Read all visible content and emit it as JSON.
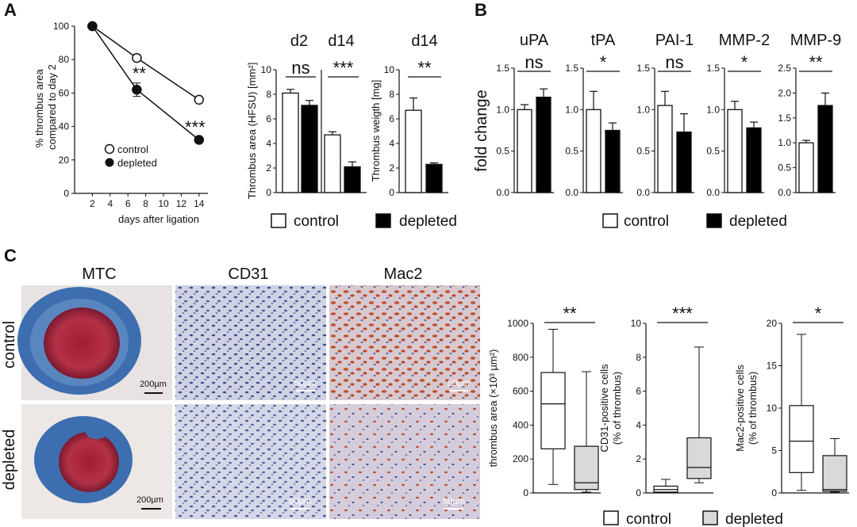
{
  "panel_labels": [
    "A",
    "B",
    "C"
  ],
  "legend": {
    "control": "control",
    "depleted": "depleted"
  },
  "colors": {
    "control": "#ffffff",
    "depleted": "#000000",
    "box_depleted": "#d9d9d9",
    "mtc_blue": "#3d6fb0",
    "mtc_red": "#b0283a",
    "ihc_bg": "#c9cde0",
    "mac2_stain": "#c0502b"
  },
  "chart_data": [
    {
      "id": "A_line",
      "type": "line",
      "xlabel": "days after ligation",
      "ylabel": "% thrombus area compared to day 2",
      "xlim": [
        0,
        15
      ],
      "ylim": [
        0,
        100
      ],
      "x_ticks": [
        "2",
        "4",
        "6",
        "8",
        "10",
        "12",
        "14"
      ],
      "y_ticks": [
        "0",
        "20",
        "40",
        "60",
        "80",
        "100"
      ],
      "series": [
        {
          "name": "control",
          "x": [
            2,
            7,
            14
          ],
          "y": [
            100,
            81,
            56
          ],
          "err": [
            0,
            0,
            0
          ]
        },
        {
          "name": "depleted",
          "x": [
            2,
            7,
            14
          ],
          "y": [
            100,
            62,
            32
          ],
          "err": [
            0,
            4,
            0
          ]
        }
      ],
      "annotations": [
        {
          "text": "**",
          "x": 7
        },
        {
          "text": "***",
          "x": 14
        }
      ]
    },
    {
      "id": "A_area",
      "type": "bar",
      "ylabel": "Thrombus area (HFSU) [mm²]",
      "ylim": [
        0,
        10
      ],
      "y_ticks": [
        "0",
        "2",
        "4",
        "6",
        "8",
        "10"
      ],
      "groups": [
        {
          "label": "d2",
          "sig": "ns"
        },
        {
          "label": "d14",
          "sig": "***"
        }
      ],
      "series": [
        {
          "name": "control",
          "values": [
            8.1,
            4.7
          ],
          "err": [
            0.3,
            0.25
          ]
        },
        {
          "name": "depleted",
          "values": [
            7.1,
            2.1
          ],
          "err": [
            0.4,
            0.4
          ]
        }
      ]
    },
    {
      "id": "A_weight",
      "type": "bar",
      "title": "d14",
      "ylabel": "Thrombus weigth [mg]",
      "ylim": [
        0,
        10
      ],
      "y_ticks": [
        "0",
        "2",
        "4",
        "6",
        "8",
        "10"
      ],
      "sig": "**",
      "series": [
        {
          "name": "control",
          "values": [
            6.7
          ],
          "err": [
            1.0
          ]
        },
        {
          "name": "depleted",
          "values": [
            2.3
          ],
          "err": [
            0.12
          ]
        }
      ]
    },
    {
      "id": "B_fold",
      "type": "bar",
      "ylabel": "fold change",
      "subplots": [
        {
          "title": "uPA",
          "sig": "ns",
          "ylim": [
            0,
            1.5
          ],
          "y_ticks": [
            "0.0",
            "0.5",
            "1.0",
            "1.5"
          ],
          "control": [
            1.0,
            0.06
          ],
          "depleted": [
            1.15,
            0.1
          ]
        },
        {
          "title": "tPA",
          "sig": "*",
          "ylim": [
            0,
            1.5
          ],
          "y_ticks": [
            "0.0",
            "0.5",
            "1.0",
            "1.5"
          ],
          "control": [
            1.0,
            0.22
          ],
          "depleted": [
            0.75,
            0.09
          ]
        },
        {
          "title": "PAI-1",
          "sig": "ns",
          "ylim": [
            0,
            1.5
          ],
          "y_ticks": [
            "0.0",
            "0.5",
            "1.0",
            "1.5"
          ],
          "control": [
            1.05,
            0.17
          ],
          "depleted": [
            0.73,
            0.22
          ]
        },
        {
          "title": "MMP-2",
          "sig": "*",
          "ylim": [
            0,
            1.5
          ],
          "y_ticks": [
            "0.0",
            "0.5",
            "1.0",
            "1.5"
          ],
          "control": [
            1.0,
            0.1
          ],
          "depleted": [
            0.78,
            0.07
          ]
        },
        {
          "title": "MMP-9",
          "sig": "**",
          "ylim": [
            0,
            2.5
          ],
          "y_ticks": [
            "0.0",
            "0.5",
            "1.0",
            "1.5",
            "2.0",
            "2.5"
          ],
          "control": [
            1.0,
            0.05
          ],
          "depleted": [
            1.75,
            0.25
          ]
        }
      ]
    },
    {
      "id": "C_box",
      "type": "box",
      "subplots": [
        {
          "ylabel": "thrombus area (×10³ µm²)",
          "sig": "**",
          "ylim": [
            0,
            1000
          ],
          "y_ticks": [
            "0",
            "200",
            "400",
            "600",
            "800",
            "1000"
          ],
          "control": {
            "min": 50,
            "q1": 260,
            "median": 525,
            "q3": 710,
            "max": 965
          },
          "depleted": {
            "min": 5,
            "q1": 20,
            "median": 60,
            "q3": 275,
            "max": 715
          }
        },
        {
          "ylabel": "CD31-positive cells (% of thrombus)",
          "sig": "***",
          "ylim": [
            0,
            10
          ],
          "y_ticks": [
            "0",
            "2",
            "4",
            "6",
            "8",
            "10"
          ],
          "control": {
            "min": 0.0,
            "q1": 0.05,
            "median": 0.2,
            "q3": 0.4,
            "max": 0.8
          },
          "depleted": {
            "min": 0.6,
            "q1": 0.85,
            "median": 1.5,
            "q3": 3.25,
            "max": 8.6
          }
        },
        {
          "ylabel": "Mac2-positive cells (% of thrombus)",
          "sig": "*",
          "ylim": [
            0,
            20
          ],
          "y_ticks": [
            "0",
            "5",
            "10",
            "15",
            "20"
          ],
          "control": {
            "min": 0.3,
            "q1": 2.4,
            "median": 6.1,
            "q3": 10.3,
            "max": 18.7
          },
          "depleted": {
            "min": 0.1,
            "q1": 0.2,
            "median": 0.4,
            "q3": 4.4,
            "max": 6.4
          }
        }
      ]
    }
  ],
  "micrographs": {
    "columns": [
      "MTC",
      "CD31",
      "Mac2"
    ],
    "rows": [
      "control",
      "depleted"
    ],
    "scalebars": [
      "200µm",
      "50µm",
      "50µm",
      "200µm",
      "50µm",
      "50µm"
    ]
  }
}
